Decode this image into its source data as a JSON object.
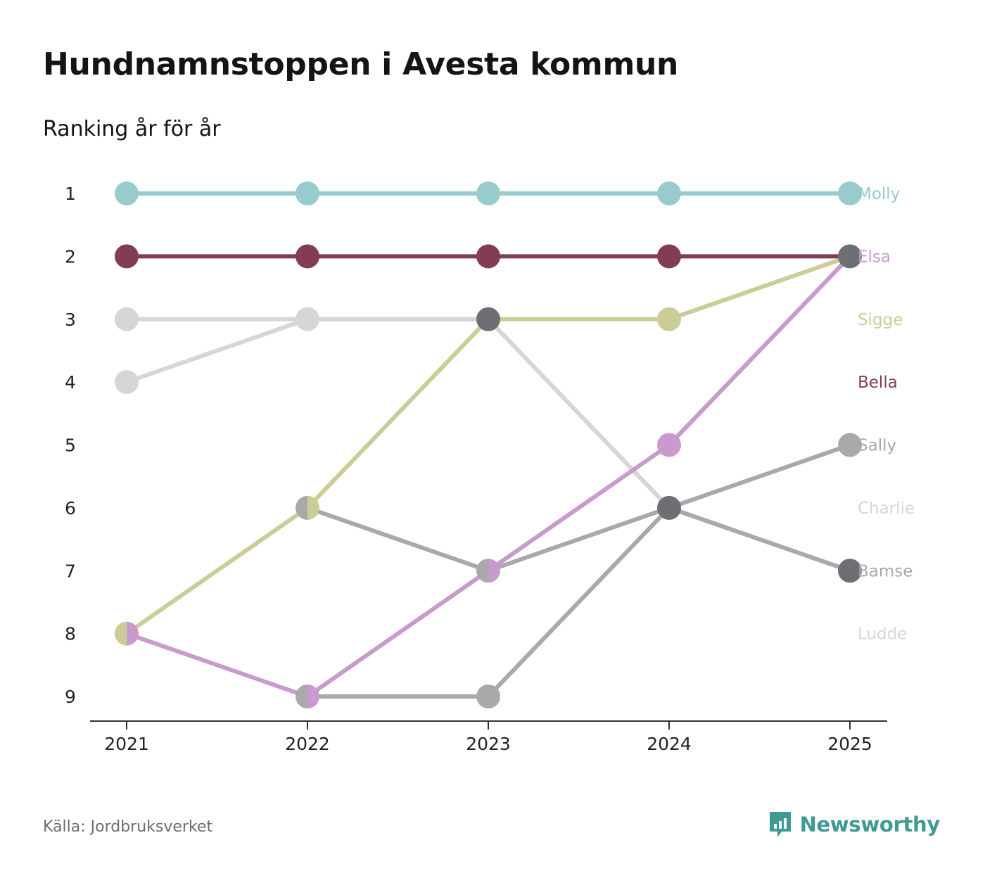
{
  "title": "Hundnamnstoppen i Avesta kommun",
  "subtitle": "Ranking år för år",
  "source": "Källa: Jordbruksverket",
  "brand": {
    "name": "Newsworthy",
    "icon": "newsworthy-logo-icon",
    "color": "#3f9a93"
  },
  "chart_data": {
    "type": "line",
    "subtype": "bump",
    "x": [
      "2021",
      "2022",
      "2023",
      "2024",
      "2025"
    ],
    "y_ticks": [
      "1",
      "2",
      "3",
      "4",
      "5",
      "6",
      "7",
      "8",
      "9"
    ],
    "ylim": [
      1,
      9
    ],
    "y_inverted": true,
    "grid": false,
    "series": [
      {
        "name": "Ludde",
        "color": "#d6d6d6",
        "values": [
          4,
          3,
          3,
          6,
          7
        ]
      },
      {
        "name": "Charlie",
        "color": "#d6d6d6",
        "values": [
          3,
          3,
          3,
          6,
          7
        ]
      },
      {
        "name": "Bamse",
        "color": "#a9a9a9",
        "values": [
          null,
          6,
          7,
          6,
          7
        ]
      },
      {
        "name": "Sally",
        "color": "#a9a9a9",
        "values": [
          null,
          9,
          9,
          6,
          5
        ]
      },
      {
        "name": "Bella",
        "color": "#823d52",
        "values": [
          2,
          2,
          2,
          2,
          2
        ]
      },
      {
        "name": "Sigge",
        "color": "#cccc96",
        "values": [
          8,
          6,
          3,
          3,
          2
        ]
      },
      {
        "name": "Elsa",
        "color": "#c99acd",
        "values": [
          8,
          9,
          7,
          5,
          2
        ]
      },
      {
        "name": "Molly",
        "color": "#98cccc",
        "values": [
          1,
          1,
          1,
          1,
          1
        ]
      }
    ],
    "end_labels": [
      {
        "name": "Molly",
        "rank": 1,
        "color": "#98cccc"
      },
      {
        "name": "Elsa",
        "rank": 2,
        "color": "#c99acd"
      },
      {
        "name": "Sigge",
        "rank": 3,
        "color": "#cccc96"
      },
      {
        "name": "Bella",
        "rank": 4,
        "color": "#823d52"
      },
      {
        "name": "Sally",
        "rank": 5,
        "color": "#a9a9a9"
      },
      {
        "name": "Charlie",
        "rank": 6,
        "color": "#d6d6d6"
      },
      {
        "name": "Bamse",
        "rank": 7,
        "color": "#a9a9a9"
      },
      {
        "name": "Ludde",
        "rank": 8,
        "color": "#d6d6d6"
      }
    ],
    "overlap_dot_color": "#6e6e74"
  }
}
